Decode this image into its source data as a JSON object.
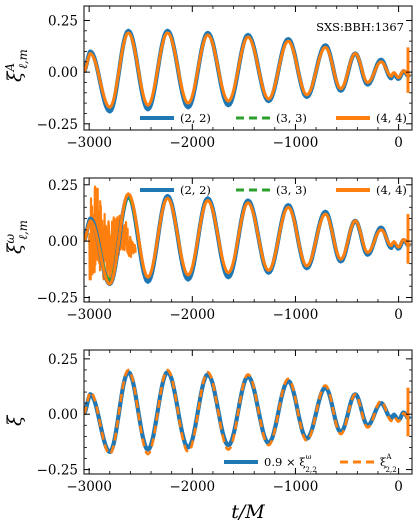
{
  "colors": {
    "blue": "#1f77b4",
    "green": "#2ca02c",
    "orange": "#ff7f0e"
  },
  "chart_data": [
    {
      "type": "line",
      "ylabel": "ξ^A_{ℓ,m}",
      "annotation": "SXS:BBH:1367",
      "xlim": [
        -3050,
        130
      ],
      "ylim": [
        -0.28,
        0.32
      ],
      "xticks": [
        -3000,
        -2000,
        -1000,
        0
      ],
      "xticklabels": [
        "−3000",
        "−2000",
        "−1000",
        "0"
      ],
      "yticks": [
        -0.25,
        0.0,
        0.25
      ],
      "yticklabels": [
        "−0.25",
        "0.00",
        "0.25"
      ],
      "legend_placement": "bottom",
      "grid": false,
      "peak_times": [
        -2990,
        -2620,
        -2240,
        -1850,
        -1460,
        -1070,
        -710,
        -420,
        -170
      ],
      "trough_times": [
        -2800,
        -2430,
        -2040,
        -1650,
        -1260,
        -890,
        -560,
        -300,
        -70
      ],
      "series": [
        {
          "name": "(2, 2)",
          "style": "solid",
          "color": "blue",
          "peaks": [
            0.1,
            0.2,
            0.2,
            0.19,
            0.18,
            0.16,
            0.13,
            0.09,
            0.06
          ],
          "troughs": [
            -0.19,
            -0.18,
            -0.17,
            -0.16,
            -0.14,
            -0.12,
            -0.09,
            -0.06,
            -0.03
          ]
        },
        {
          "name": "(3, 3)",
          "style": "dashed",
          "color": "green",
          "peaks": [
            0.09,
            0.19,
            0.19,
            0.18,
            0.17,
            0.15,
            0.12,
            0.09,
            0.05
          ],
          "troughs": [
            -0.17,
            -0.16,
            -0.15,
            -0.14,
            -0.13,
            -0.11,
            -0.08,
            -0.05,
            -0.02
          ]
        },
        {
          "name": "(4, 4)",
          "style": "solid",
          "color": "orange",
          "peaks": [
            0.09,
            0.19,
            0.19,
            0.18,
            0.17,
            0.15,
            0.12,
            0.09,
            0.05
          ],
          "troughs": [
            -0.17,
            -0.16,
            -0.15,
            -0.14,
            -0.13,
            -0.11,
            -0.08,
            -0.05,
            -0.02
          ]
        }
      ]
    },
    {
      "type": "line",
      "ylabel": "ξ^ω_{ℓ,m}",
      "xlim": [
        -3050,
        130
      ],
      "ylim": [
        -0.27,
        0.28
      ],
      "xticks": [
        -3000,
        -2000,
        -1000,
        0
      ],
      "xticklabels": [
        "−3000",
        "−2000",
        "−1000",
        "0"
      ],
      "yticks": [
        -0.25,
        0.0,
        0.25
      ],
      "yticklabels": [
        "−0.25",
        "0.00",
        "0.25"
      ],
      "legend_placement": "top",
      "grid": false,
      "peak_times": [
        -2990,
        -2620,
        -2240,
        -1850,
        -1460,
        -1070,
        -710,
        -420,
        -170
      ],
      "trough_times": [
        -2800,
        -2430,
        -2040,
        -1650,
        -1260,
        -890,
        -560,
        -300,
        -70
      ],
      "noise_region": [
        -3000,
        -2550
      ],
      "series": [
        {
          "name": "(2, 2)",
          "style": "solid",
          "color": "blue",
          "peaks": [
            0.1,
            0.2,
            0.2,
            0.19,
            0.18,
            0.16,
            0.13,
            0.09,
            0.06
          ],
          "troughs": [
            -0.19,
            -0.18,
            -0.17,
            -0.16,
            -0.14,
            -0.12,
            -0.09,
            -0.06,
            -0.03
          ]
        },
        {
          "name": "(3, 3)",
          "style": "dashed",
          "color": "green",
          "peaks": [
            0.09,
            0.19,
            0.19,
            0.18,
            0.17,
            0.15,
            0.12,
            0.09,
            0.05
          ],
          "troughs": [
            -0.17,
            -0.16,
            -0.15,
            -0.14,
            -0.13,
            -0.11,
            -0.08,
            -0.05,
            -0.02
          ]
        },
        {
          "name": "(4, 4)",
          "style": "solid",
          "color": "orange",
          "peaks": [
            0.09,
            0.21,
            0.19,
            0.18,
            0.17,
            0.15,
            0.12,
            0.09,
            0.05
          ],
          "troughs": [
            -0.19,
            -0.16,
            -0.15,
            -0.14,
            -0.13,
            -0.11,
            -0.08,
            -0.05,
            -0.02
          ]
        }
      ]
    },
    {
      "type": "line",
      "ylabel": "ξ",
      "xlabel": "t/M",
      "xlim": [
        -3050,
        130
      ],
      "ylim": [
        -0.27,
        0.29
      ],
      "xticks": [
        -3000,
        -2000,
        -1000,
        0
      ],
      "xticklabels": [
        "−3000",
        "−2000",
        "−1000",
        "0"
      ],
      "yticks": [
        -0.25,
        0.0,
        0.25
      ],
      "yticklabels": [
        "−0.25",
        "0.00",
        "0.25"
      ],
      "legend_placement": "bottom-right",
      "grid": false,
      "peak_times": [
        -2990,
        -2620,
        -2240,
        -1850,
        -1460,
        -1070,
        -710,
        -420,
        -170
      ],
      "trough_times": [
        -2800,
        -2430,
        -2040,
        -1650,
        -1260,
        -890,
        -560,
        -300,
        -70
      ],
      "series": [
        {
          "name": "0.9 × ξ^ω_{2,2}",
          "style": "solid",
          "color": "blue",
          "peaks": [
            0.09,
            0.19,
            0.19,
            0.18,
            0.17,
            0.15,
            0.12,
            0.09,
            0.05
          ],
          "troughs": [
            -0.17,
            -0.16,
            -0.15,
            -0.14,
            -0.13,
            -0.11,
            -0.08,
            -0.05,
            -0.02
          ]
        },
        {
          "name": "ξ^A_{2,2}",
          "style": "dashed",
          "color": "orange",
          "peaks": [
            0.1,
            0.2,
            0.2,
            0.19,
            0.18,
            0.16,
            0.13,
            0.09,
            0.06
          ],
          "troughs": [
            -0.18,
            -0.18,
            -0.17,
            -0.16,
            -0.14,
            -0.12,
            -0.09,
            -0.06,
            -0.03
          ]
        }
      ]
    }
  ]
}
